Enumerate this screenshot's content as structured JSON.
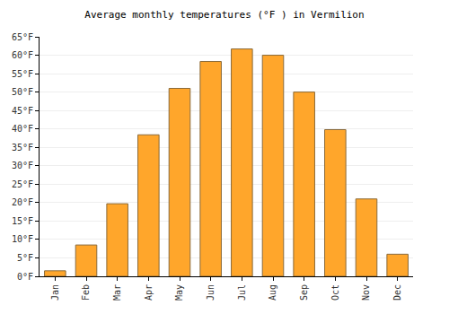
{
  "chart_data": {
    "type": "bar",
    "title": "Average monthly temperatures (°F ) in Vermilion",
    "categories": [
      "Jan",
      "Feb",
      "Mar",
      "Apr",
      "May",
      "Jun",
      "Jul",
      "Aug",
      "Sep",
      "Oct",
      "Nov",
      "Dec"
    ],
    "values": [
      1.5,
      8.5,
      19.7,
      38.4,
      51,
      58.3,
      61.7,
      60,
      50,
      39.8,
      21,
      6
    ],
    "color": "#ffa62b",
    "ylim": [
      0,
      65
    ],
    "yticks": [
      {
        "value": 0,
        "label": "0°F"
      },
      {
        "value": 5,
        "label": "5°F"
      },
      {
        "value": 10,
        "label": "10°F"
      },
      {
        "value": 15,
        "label": "15°F"
      },
      {
        "value": 20,
        "label": "20°F"
      },
      {
        "value": 25,
        "label": "25°F"
      },
      {
        "value": 30,
        "label": "30°F"
      },
      {
        "value": 35,
        "label": "35°F"
      },
      {
        "value": 40,
        "label": "40°F"
      },
      {
        "value": 45,
        "label": "45°F"
      },
      {
        "value": 50,
        "label": "50°F"
      },
      {
        "value": 55,
        "label": "55°F"
      },
      {
        "value": 60,
        "label": "60°F"
      },
      {
        "value": 65,
        "label": "65°F"
      }
    ],
    "grid": true
  }
}
